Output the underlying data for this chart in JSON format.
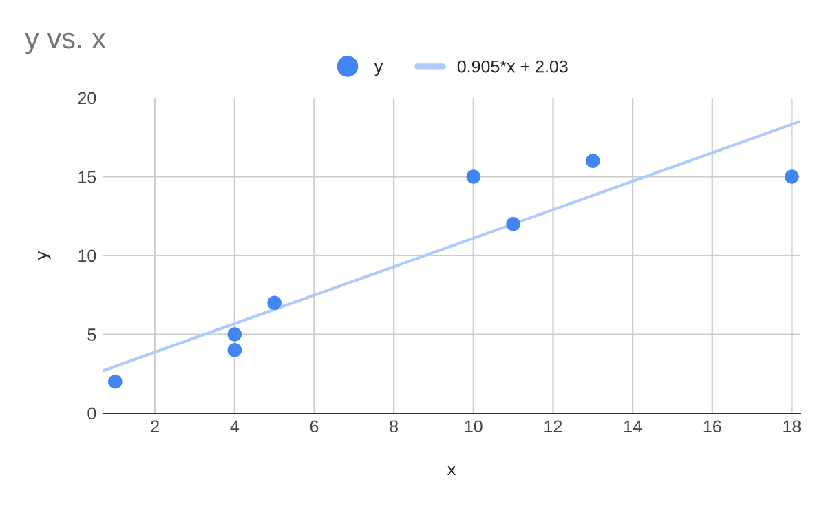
{
  "chart_data": {
    "type": "scatter",
    "title": "y vs. x",
    "xlabel": "x",
    "ylabel": "y",
    "x": [
      1,
      4,
      4,
      5,
      10,
      11,
      13,
      18
    ],
    "series": [
      {
        "name": "y",
        "color": "#4285f4",
        "values": [
          2,
          4,
          5,
          7,
          15,
          12,
          16,
          15
        ],
        "marker": "circle"
      },
      {
        "name": "0.905*x + 2.03",
        "type": "line",
        "color": "#aecbfa",
        "x": [
          0.7,
          18.2
        ],
        "values": [
          2.7,
          18.5
        ],
        "line_style": "solid"
      }
    ],
    "xlim": [
      0.7,
      18.2
    ],
    "xticks": [
      2,
      4,
      6,
      8,
      10,
      12,
      14,
      16,
      18
    ],
    "ylim": [
      0,
      20
    ],
    "yticks": [
      0,
      5,
      10,
      15,
      20
    ],
    "grid": true,
    "legend": "top"
  }
}
